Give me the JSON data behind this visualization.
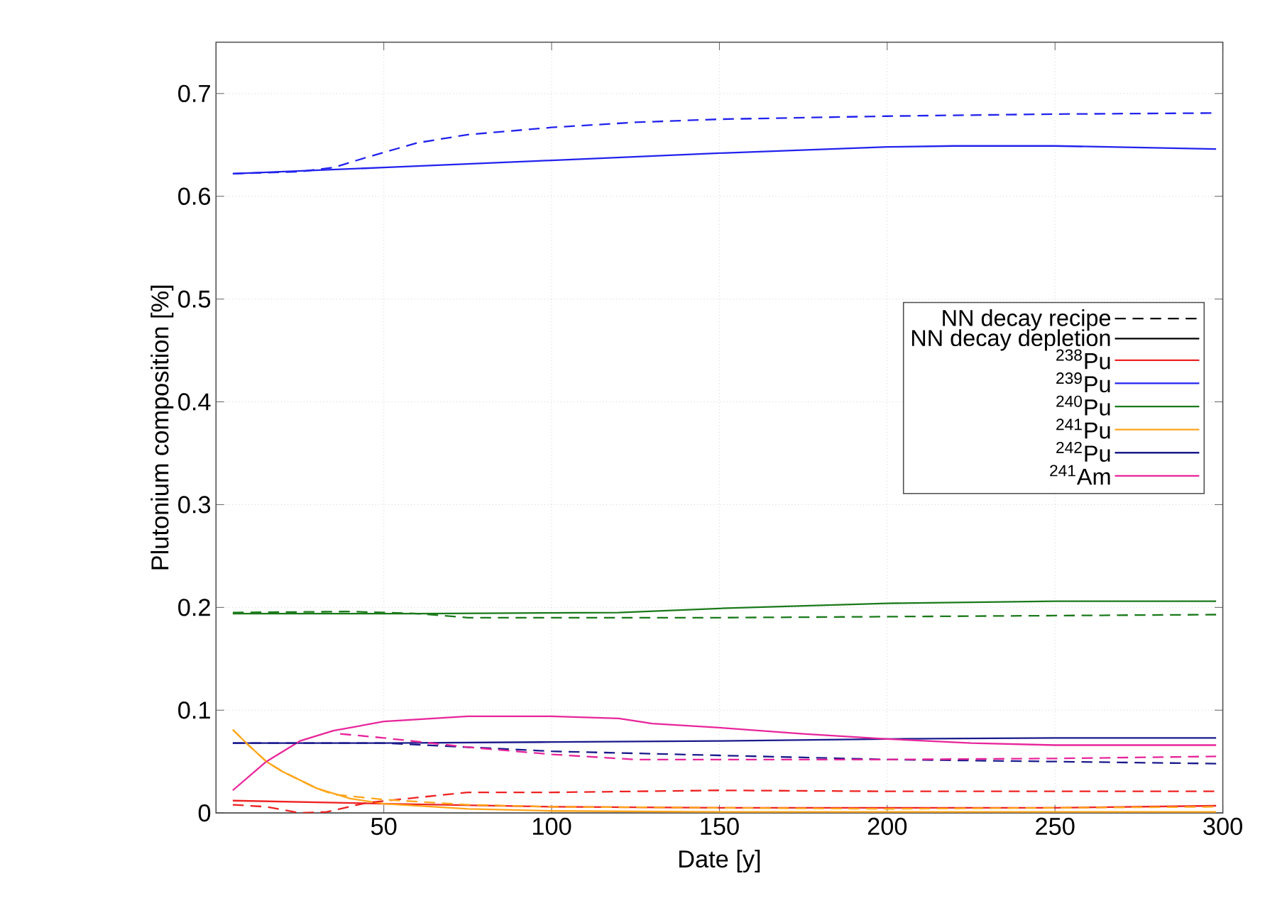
{
  "chart_data": {
    "type": "line",
    "xlabel": "Date [y]",
    "ylabel": "Plutonium composition [%]",
    "xlim": [
      0,
      300
    ],
    "ylim": [
      0,
      0.75
    ],
    "xticks": [
      50,
      100,
      150,
      200,
      250,
      300
    ],
    "yticks": [
      0,
      0.1,
      0.2,
      0.3,
      0.4,
      0.5,
      0.6,
      0.7
    ],
    "grid": true,
    "legend": "right",
    "marker": "none",
    "series": [
      {
        "name": "NN decay recipe",
        "color": "#000000",
        "line_style": "dashed"
      },
      {
        "name": "NN decay depletion",
        "color": "#000000",
        "line_style": "solid"
      },
      {
        "name": "$^{238}$Pu",
        "color": "#ee2222",
        "line_style": "solid",
        "x": [
          5,
          50,
          100,
          150,
          200,
          250,
          298
        ],
        "values": [
          0.012,
          0.009,
          0.006,
          0.005,
          0.005,
          0.005,
          0.007
        ]
      },
      {
        "name": "$^{239}$Pu",
        "color": "#2222ee",
        "line_style": "solid",
        "x": [
          5,
          50,
          100,
          150,
          200,
          220,
          250,
          298
        ],
        "values": [
          0.622,
          0.628,
          0.635,
          0.642,
          0.648,
          0.649,
          0.649,
          0.646
        ]
      },
      {
        "name": "$^{240}$Pu",
        "color": "#1a7a1a",
        "line_style": "solid",
        "x": [
          5,
          60,
          120,
          150,
          200,
          250,
          298
        ],
        "values": [
          0.194,
          0.194,
          0.195,
          0.199,
          0.204,
          0.206,
          0.206
        ]
      },
      {
        "name": "$^{241}$Pu",
        "color": "#ffa51a",
        "line_style": "solid",
        "x": [
          5,
          10,
          15,
          20,
          30,
          40,
          50,
          75,
          100,
          150,
          200,
          298
        ],
        "values": [
          0.081,
          0.065,
          0.05,
          0.04,
          0.024,
          0.014,
          0.009,
          0.004,
          0.002,
          0.001,
          0.001,
          0.001
        ]
      },
      {
        "name": "$^{242}$Pu",
        "color": "#1a1a8c",
        "line_style": "solid",
        "x": [
          5,
          50,
          100,
          150,
          200,
          250,
          298
        ],
        "values": [
          0.068,
          0.068,
          0.069,
          0.07,
          0.072,
          0.073,
          0.073
        ]
      },
      {
        "name": "$^{241}$Am",
        "color": "#e8259a",
        "line_style": "solid",
        "x": [
          5,
          15,
          25,
          35,
          50,
          75,
          100,
          120,
          130,
          150,
          175,
          200,
          225,
          250,
          298
        ],
        "values": [
          0.022,
          0.05,
          0.07,
          0.08,
          0.089,
          0.094,
          0.094,
          0.092,
          0.087,
          0.083,
          0.077,
          0.072,
          0.068,
          0.066,
          0.066
        ]
      },
      {
        "color": "#ee2222",
        "line_style": "dashed",
        "x": [
          5,
          15,
          25,
          33,
          45,
          60,
          75,
          100,
          150,
          200,
          250,
          298
        ],
        "values": [
          0.008,
          0.006,
          0.0,
          0.001,
          0.01,
          0.015,
          0.02,
          0.02,
          0.022,
          0.021,
          0.021,
          0.021
        ]
      },
      {
        "color": "#2222ee",
        "line_style": "dashed",
        "x": [
          5,
          25,
          35,
          45,
          60,
          75,
          100,
          125,
          150,
          200,
          250,
          298
        ],
        "values": [
          0.622,
          0.624,
          0.628,
          0.638,
          0.652,
          0.66,
          0.667,
          0.672,
          0.675,
          0.678,
          0.68,
          0.681
        ]
      },
      {
        "color": "#1a7a1a",
        "line_style": "dashed",
        "x": [
          5,
          40,
          60,
          75,
          100,
          150,
          200,
          250,
          298
        ],
        "values": [
          0.195,
          0.196,
          0.194,
          0.19,
          0.19,
          0.19,
          0.191,
          0.192,
          0.193
        ]
      },
      {
        "color": "#ffa51a",
        "line_style": "dashed",
        "x": [
          5,
          10,
          15,
          20,
          30,
          35,
          50,
          75,
          100,
          150,
          200,
          250,
          298
        ],
        "values": [
          0.081,
          0.065,
          0.05,
          0.04,
          0.024,
          0.018,
          0.013,
          0.008,
          0.006,
          0.005,
          0.004,
          0.005,
          0.006
        ]
      },
      {
        "color": "#1a1a8c",
        "line_style": "dashed",
        "x": [
          5,
          50,
          75,
          100,
          150,
          200,
          250,
          298
        ],
        "values": [
          0.068,
          0.068,
          0.064,
          0.06,
          0.056,
          0.052,
          0.05,
          0.048
        ]
      },
      {
        "color": "#e8259a",
        "line_style": "dashed",
        "x": [
          37,
          50,
          75,
          100,
          125,
          150,
          200,
          250,
          298
        ],
        "values": [
          0.077,
          0.073,
          0.064,
          0.057,
          0.052,
          0.052,
          0.052,
          0.053,
          0.055
        ]
      }
    ]
  }
}
